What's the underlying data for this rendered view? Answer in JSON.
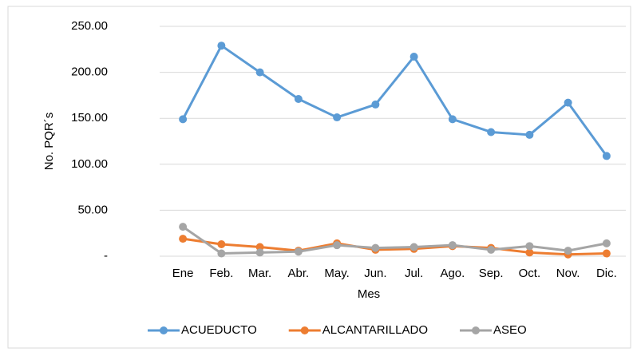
{
  "chart_data": {
    "type": "line",
    "y_label": "No. PQR´s",
    "x_label": "Mes",
    "categories": [
      "Ene",
      "Feb.",
      "Mar.",
      "Abr.",
      "May.",
      "Jun.",
      "Jul.",
      "Ago.",
      "Sep.",
      "Oct.",
      "Nov.",
      "Dic."
    ],
    "series": [
      {
        "name": "ACUEDUCTO",
        "color": "#5b9bd5",
        "values": [
          149,
          229,
          200,
          171,
          151,
          165,
          217,
          149,
          135,
          132,
          167,
          109
        ]
      },
      {
        "name": "ALCANTARILLADO",
        "color": "#ed7d31",
        "values": [
          19,
          13,
          10,
          6,
          14,
          7,
          8,
          11,
          9,
          4,
          2,
          3
        ]
      },
      {
        "name": "ASEO",
        "color": "#a5a5a5",
        "values": [
          32,
          3,
          4,
          5,
          12,
          9,
          10,
          12,
          7,
          11,
          6,
          14
        ]
      }
    ],
    "ylim": [
      0,
      250
    ],
    "yticks": [
      {
        "value": 0,
        "label": "-"
      },
      {
        "value": 50,
        "label": "50.00"
      },
      {
        "value": 100,
        "label": "100.00"
      },
      {
        "value": 150,
        "label": "150.00"
      },
      {
        "value": 200,
        "label": "200.00"
      },
      {
        "value": 250,
        "label": "250.00"
      }
    ],
    "grid": true,
    "legend": "bottom"
  }
}
